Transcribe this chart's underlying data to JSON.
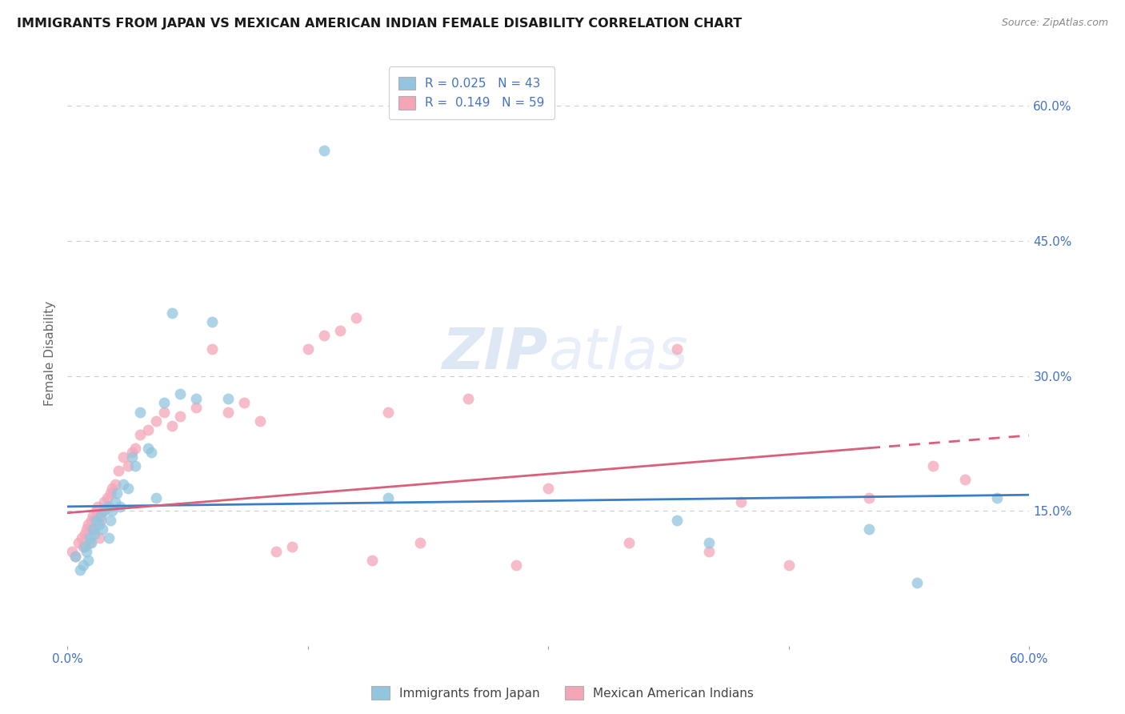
{
  "title": "IMMIGRANTS FROM JAPAN VS MEXICAN AMERICAN INDIAN FEMALE DISABILITY CORRELATION CHART",
  "source": "Source: ZipAtlas.com",
  "ylabel": "Female Disability",
  "xlim": [
    0.0,
    0.6
  ],
  "ylim": [
    0.0,
    0.65
  ],
  "yticks": [
    0.15,
    0.3,
    0.45,
    0.6
  ],
  "ytick_labels": [
    "15.0%",
    "30.0%",
    "45.0%",
    "60.0%"
  ],
  "xticks": [
    0.0,
    0.15,
    0.3,
    0.45,
    0.6
  ],
  "xtick_labels": [
    "0.0%",
    "",
    "",
    "",
    "60.0%"
  ],
  "legend_R1": "0.025",
  "legend_N1": "43",
  "legend_R2": "0.149",
  "legend_N2": "59",
  "color_blue": "#92c5de",
  "color_pink": "#f4a6b8",
  "line_blue": "#3a7ec6",
  "line_pink": "#d95f7a",
  "background": "#ffffff",
  "grid_color": "#cccccc",
  "japan_x": [
    0.005,
    0.008,
    0.01,
    0.011,
    0.012,
    0.013,
    0.014,
    0.015,
    0.016,
    0.017,
    0.018,
    0.02,
    0.021,
    0.022,
    0.023,
    0.025,
    0.026,
    0.027,
    0.028,
    0.03,
    0.031,
    0.033,
    0.035,
    0.038,
    0.04,
    0.042,
    0.045,
    0.05,
    0.052,
    0.055,
    0.06,
    0.065,
    0.07,
    0.08,
    0.09,
    0.1,
    0.16,
    0.2,
    0.38,
    0.4,
    0.5,
    0.53,
    0.58
  ],
  "japan_y": [
    0.1,
    0.085,
    0.09,
    0.11,
    0.105,
    0.095,
    0.12,
    0.115,
    0.13,
    0.125,
    0.14,
    0.135,
    0.145,
    0.13,
    0.15,
    0.155,
    0.12,
    0.14,
    0.15,
    0.16,
    0.17,
    0.155,
    0.18,
    0.175,
    0.21,
    0.2,
    0.26,
    0.22,
    0.215,
    0.165,
    0.27,
    0.37,
    0.28,
    0.275,
    0.36,
    0.275,
    0.55,
    0.165,
    0.14,
    0.115,
    0.13,
    0.07,
    0.165
  ],
  "mexican_x": [
    0.003,
    0.005,
    0.007,
    0.009,
    0.01,
    0.011,
    0.012,
    0.013,
    0.014,
    0.015,
    0.016,
    0.017,
    0.018,
    0.019,
    0.02,
    0.021,
    0.022,
    0.023,
    0.025,
    0.026,
    0.027,
    0.028,
    0.03,
    0.032,
    0.035,
    0.038,
    0.04,
    0.042,
    0.045,
    0.05,
    0.055,
    0.06,
    0.065,
    0.07,
    0.08,
    0.09,
    0.1,
    0.11,
    0.12,
    0.13,
    0.14,
    0.15,
    0.16,
    0.17,
    0.18,
    0.19,
    0.2,
    0.22,
    0.25,
    0.28,
    0.3,
    0.35,
    0.38,
    0.4,
    0.42,
    0.45,
    0.5,
    0.54,
    0.56
  ],
  "mexican_y": [
    0.105,
    0.1,
    0.115,
    0.12,
    0.11,
    0.125,
    0.13,
    0.135,
    0.115,
    0.14,
    0.145,
    0.13,
    0.15,
    0.155,
    0.12,
    0.14,
    0.15,
    0.16,
    0.165,
    0.155,
    0.17,
    0.175,
    0.18,
    0.195,
    0.21,
    0.2,
    0.215,
    0.22,
    0.235,
    0.24,
    0.25,
    0.26,
    0.245,
    0.255,
    0.265,
    0.33,
    0.26,
    0.27,
    0.25,
    0.105,
    0.11,
    0.33,
    0.345,
    0.35,
    0.365,
    0.095,
    0.26,
    0.115,
    0.275,
    0.09,
    0.175,
    0.115,
    0.33,
    0.105,
    0.16,
    0.09,
    0.165,
    0.2,
    0.185
  ]
}
